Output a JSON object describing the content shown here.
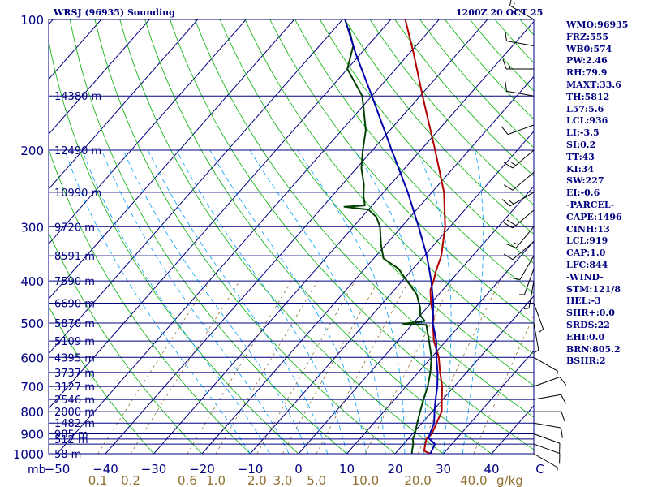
{
  "chart_data": {
    "type": "line",
    "diagram": "Skew-T log-P",
    "title_left": "WRSJ (96935) Sounding",
    "title_right": "1200Z 20 OCT 25",
    "p_axis_unit": "mb",
    "p_ticks": [
      "100",
      "200",
      "300",
      "400",
      "500",
      "600",
      "700",
      "800",
      "900",
      "1000"
    ],
    "p_tick_values": [
      100,
      200,
      300,
      400,
      500,
      600,
      700,
      800,
      900,
      1000
    ],
    "p_levels_lines": [
      100,
      150,
      200,
      250,
      300,
      350,
      400,
      450,
      500,
      550,
      600,
      650,
      700,
      750,
      800,
      850,
      900,
      925,
      950,
      1000
    ],
    "t_ticks": [
      "−50",
      "−40",
      "−30",
      "−20",
      "−10",
      "0",
      "10",
      "20",
      "30",
      "40",
      "C"
    ],
    "t_tick_values": [
      -50,
      -40,
      -30,
      -20,
      -10,
      0,
      10,
      20,
      30,
      40,
      50
    ],
    "mixing_ratio_unit": "g/kg",
    "mixing_ratio_labels": [
      "0.1",
      "0.2",
      "0.6",
      "1.0",
      "2.0",
      "3.0",
      "5.0",
      "10.0",
      "20.0",
      "40.0"
    ],
    "height_labels": [
      {
        "p": 150,
        "text": "14380 m"
      },
      {
        "p": 200,
        "text": "12490 m"
      },
      {
        "p": 250,
        "text": "10990 m"
      },
      {
        "p": 300,
        "text": "9720 m"
      },
      {
        "p": 350,
        "text": "8591 m"
      },
      {
        "p": 400,
        "text": "7590 m"
      },
      {
        "p": 450,
        "text": "6690 m"
      },
      {
        "p": 500,
        "text": "5870 m"
      },
      {
        "p": 550,
        "text": "5109 m"
      },
      {
        "p": 600,
        "text": "4395 m"
      },
      {
        "p": 650,
        "text": "3737 m"
      },
      {
        "p": 700,
        "text": "3127 m"
      },
      {
        "p": 750,
        "text": "2546 m"
      },
      {
        "p": 800,
        "text": "2000 m"
      },
      {
        "p": 850,
        "text": "1482 m"
      },
      {
        "p": 900,
        "text": "985 m"
      },
      {
        "p": 925,
        "text": "512 m"
      },
      {
        "p": 1000,
        "text": "58 m"
      }
    ],
    "series": [
      {
        "name": "temperature",
        "color": "#b00000",
        "points": [
          [
            1000,
            27.3
          ],
          [
            985,
            25.5
          ],
          [
            950,
            24.5
          ],
          [
            925,
            23.8
          ],
          [
            900,
            24.0
          ],
          [
            850,
            23.0
          ],
          [
            800,
            22.0
          ],
          [
            750,
            19.8
          ],
          [
            700,
            17.5
          ],
          [
            650,
            14.5
          ],
          [
            600,
            11.5
          ],
          [
            550,
            7.5
          ],
          [
            500,
            4.0
          ],
          [
            490,
            3.5
          ],
          [
            450,
            0.0
          ],
          [
            420,
            -2.5
          ],
          [
            400,
            -3.5
          ],
          [
            380,
            -4.8
          ],
          [
            350,
            -6.5
          ],
          [
            300,
            -11.0
          ],
          [
            250,
            -17.5
          ],
          [
            200,
            -27.0
          ],
          [
            150,
            -39.5
          ],
          [
            120,
            -49.0
          ],
          [
            100,
            -57.0
          ]
        ]
      },
      {
        "name": "dewpoint",
        "color": "#004000",
        "points": [
          [
            1000,
            23.5
          ],
          [
            985,
            23.0
          ],
          [
            950,
            22.0
          ],
          [
            925,
            21.0
          ],
          [
            900,
            20.5
          ],
          [
            850,
            19.0
          ],
          [
            800,
            17.5
          ],
          [
            750,
            16.0
          ],
          [
            700,
            14.5
          ],
          [
            650,
            12.5
          ],
          [
            600,
            10.0
          ],
          [
            550,
            6.5
          ],
          [
            505,
            3.0
          ],
          [
            502,
            -2.0
          ],
          [
            495,
            2.0
          ],
          [
            480,
            0.0
          ],
          [
            460,
            -1.5
          ],
          [
            450,
            -2.5
          ],
          [
            430,
            -4.5
          ],
          [
            400,
            -9.0
          ],
          [
            375,
            -13.0
          ],
          [
            355,
            -18.0
          ],
          [
            330,
            -21.0
          ],
          [
            300,
            -24.5
          ],
          [
            285,
            -27.0
          ],
          [
            274,
            -30.0
          ],
          [
            270,
            -35.5
          ],
          [
            268,
            -31.5
          ],
          [
            255,
            -33.5
          ],
          [
            240,
            -35.5
          ],
          [
            220,
            -39.0
          ],
          [
            200,
            -42.0
          ],
          [
            180,
            -45.0
          ],
          [
            160,
            -49.5
          ],
          [
            150,
            -52.0
          ],
          [
            130,
            -60.0
          ],
          [
            115,
            -63.0
          ],
          [
            105,
            -67.0
          ]
        ]
      },
      {
        "name": "parcel",
        "color": "#0000aa",
        "points": [
          [
            1000,
            27.3
          ],
          [
            950,
            26.5
          ],
          [
            919,
            24.0
          ],
          [
            850,
            22.5
          ],
          [
            800,
            20.5
          ],
          [
            750,
            18.5
          ],
          [
            700,
            16.5
          ],
          [
            650,
            14.0
          ],
          [
            600,
            11.0
          ],
          [
            550,
            8.0
          ],
          [
            500,
            4.0
          ],
          [
            450,
            0.5
          ],
          [
            400,
            -4.0
          ],
          [
            350,
            -9.5
          ],
          [
            300,
            -16.5
          ],
          [
            250,
            -25.0
          ],
          [
            200,
            -36.0
          ],
          [
            150,
            -50.0
          ],
          [
            120,
            -61.0
          ],
          [
            100,
            -69.5
          ]
        ]
      }
    ],
    "wind_barbs": [
      {
        "p": 100,
        "dir": 300,
        "spd": 15
      },
      {
        "p": 115,
        "dir": 280,
        "spd": 10
      },
      {
        "p": 130,
        "dir": 270,
        "spd": 15
      },
      {
        "p": 150,
        "dir": 280,
        "spd": 10
      },
      {
        "p": 175,
        "dir": 250,
        "spd": 10
      },
      {
        "p": 200,
        "dir": 230,
        "spd": 15
      },
      {
        "p": 225,
        "dir": 230,
        "spd": 10
      },
      {
        "p": 250,
        "dir": 240,
        "spd": 15
      },
      {
        "p": 275,
        "dir": 230,
        "spd": 20
      },
      {
        "p": 300,
        "dir": 220,
        "spd": 15
      },
      {
        "p": 325,
        "dir": 230,
        "spd": 10
      },
      {
        "p": 350,
        "dir": 210,
        "spd": 10
      },
      {
        "p": 375,
        "dir": 200,
        "spd": 5
      },
      {
        "p": 400,
        "dir": 190,
        "spd": 5
      },
      {
        "p": 450,
        "dir": 160,
        "spd": 5
      },
      {
        "p": 500,
        "dir": 170,
        "spd": 5
      },
      {
        "p": 600,
        "dir": 120,
        "spd": 5
      },
      {
        "p": 700,
        "dir": 70,
        "spd": 10
      },
      {
        "p": 750,
        "dir": 80,
        "spd": 10
      },
      {
        "p": 800,
        "dir": 90,
        "spd": 10
      },
      {
        "p": 850,
        "dir": 100,
        "spd": 10
      },
      {
        "p": 900,
        "dir": 110,
        "spd": 10
      },
      {
        "p": 950,
        "dir": 110,
        "spd": 10
      },
      {
        "p": 1000,
        "dir": 120,
        "spd": 5
      }
    ],
    "colors": {
      "frame": "#000080",
      "isobar": "#000080",
      "isotherm": "#000080",
      "dry_adiabat": "#00b000",
      "moist_adiabat": "#00a0ff",
      "mixing_ratio": "#907030",
      "axis_text": "#000080",
      "mr_text": "#907030"
    }
  },
  "stats": [
    "WMO:96935",
    "FRZ:555",
    "WB0:574",
    "PW:2.46",
    "RH:79.9",
    "MAXT:33.6",
    "TH:5812",
    "L57:5.6",
    "LCL:936",
    "LI:-3.5",
    "SI:0.2",
    "TT:43",
    "KI:34",
    "SW:227",
    "EI:-0.6",
    "-PARCEL-",
    "CAPE:1496",
    "CINH:13",
    "LCL:919",
    "CAP:1.0",
    "LFC:844",
    "-WIND-",
    "STM:121/8",
    "HEL:-3",
    "SHR+:0.0",
    "SRDS:22",
    "EHI:0.0",
    "BRN:805.2",
    "BSHR:2"
  ]
}
